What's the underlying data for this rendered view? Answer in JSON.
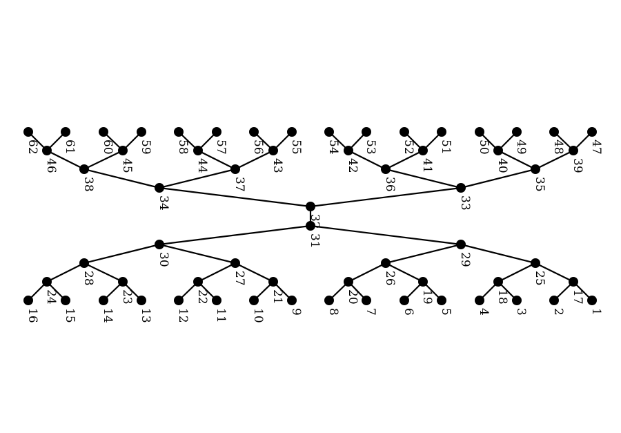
{
  "graph": {
    "node_color": "#000000",
    "edge_color": "#000000",
    "label_orientation": "rotated 90 degrees clockwise",
    "nodes": [
      "1",
      "2",
      "3",
      "4",
      "5",
      "6",
      "7",
      "8",
      "9",
      "10",
      "11",
      "12",
      "13",
      "14",
      "15",
      "16",
      "17",
      "18",
      "19",
      "20",
      "21",
      "22",
      "23",
      "24",
      "25",
      "26",
      "27",
      "28",
      "29",
      "30",
      "31",
      "32",
      "33",
      "34",
      "35",
      "36",
      "37",
      "38",
      "39",
      "40",
      "41",
      "42",
      "43",
      "44",
      "45",
      "46",
      "47",
      "48",
      "49",
      "50",
      "51",
      "52",
      "53",
      "54",
      "55",
      "56",
      "57",
      "58",
      "59",
      "60",
      "61",
      "62"
    ],
    "edges": [
      [
        "31",
        "32"
      ],
      [
        "31",
        "29"
      ],
      [
        "31",
        "30"
      ],
      [
        "29",
        "25"
      ],
      [
        "29",
        "26"
      ],
      [
        "30",
        "27"
      ],
      [
        "30",
        "28"
      ],
      [
        "25",
        "17"
      ],
      [
        "25",
        "18"
      ],
      [
        "26",
        "19"
      ],
      [
        "26",
        "20"
      ],
      [
        "27",
        "21"
      ],
      [
        "27",
        "22"
      ],
      [
        "28",
        "23"
      ],
      [
        "28",
        "24"
      ],
      [
        "17",
        "1"
      ],
      [
        "17",
        "2"
      ],
      [
        "18",
        "3"
      ],
      [
        "18",
        "4"
      ],
      [
        "19",
        "5"
      ],
      [
        "19",
        "6"
      ],
      [
        "20",
        "7"
      ],
      [
        "20",
        "8"
      ],
      [
        "21",
        "9"
      ],
      [
        "21",
        "10"
      ],
      [
        "22",
        "11"
      ],
      [
        "22",
        "12"
      ],
      [
        "23",
        "13"
      ],
      [
        "23",
        "14"
      ],
      [
        "24",
        "15"
      ],
      [
        "24",
        "16"
      ],
      [
        "32",
        "33"
      ],
      [
        "32",
        "34"
      ],
      [
        "33",
        "35"
      ],
      [
        "33",
        "36"
      ],
      [
        "34",
        "37"
      ],
      [
        "34",
        "38"
      ],
      [
        "35",
        "39"
      ],
      [
        "35",
        "40"
      ],
      [
        "36",
        "41"
      ],
      [
        "36",
        "42"
      ],
      [
        "37",
        "43"
      ],
      [
        "37",
        "44"
      ],
      [
        "38",
        "45"
      ],
      [
        "38",
        "46"
      ],
      [
        "39",
        "47"
      ],
      [
        "39",
        "48"
      ],
      [
        "40",
        "49"
      ],
      [
        "40",
        "50"
      ],
      [
        "41",
        "51"
      ],
      [
        "41",
        "52"
      ],
      [
        "42",
        "53"
      ],
      [
        "42",
        "54"
      ],
      [
        "43",
        "55"
      ],
      [
        "43",
        "56"
      ],
      [
        "44",
        "57"
      ],
      [
        "44",
        "58"
      ],
      [
        "45",
        "59"
      ],
      [
        "45",
        "60"
      ],
      [
        "46",
        "61"
      ],
      [
        "46",
        "62"
      ]
    ]
  }
}
